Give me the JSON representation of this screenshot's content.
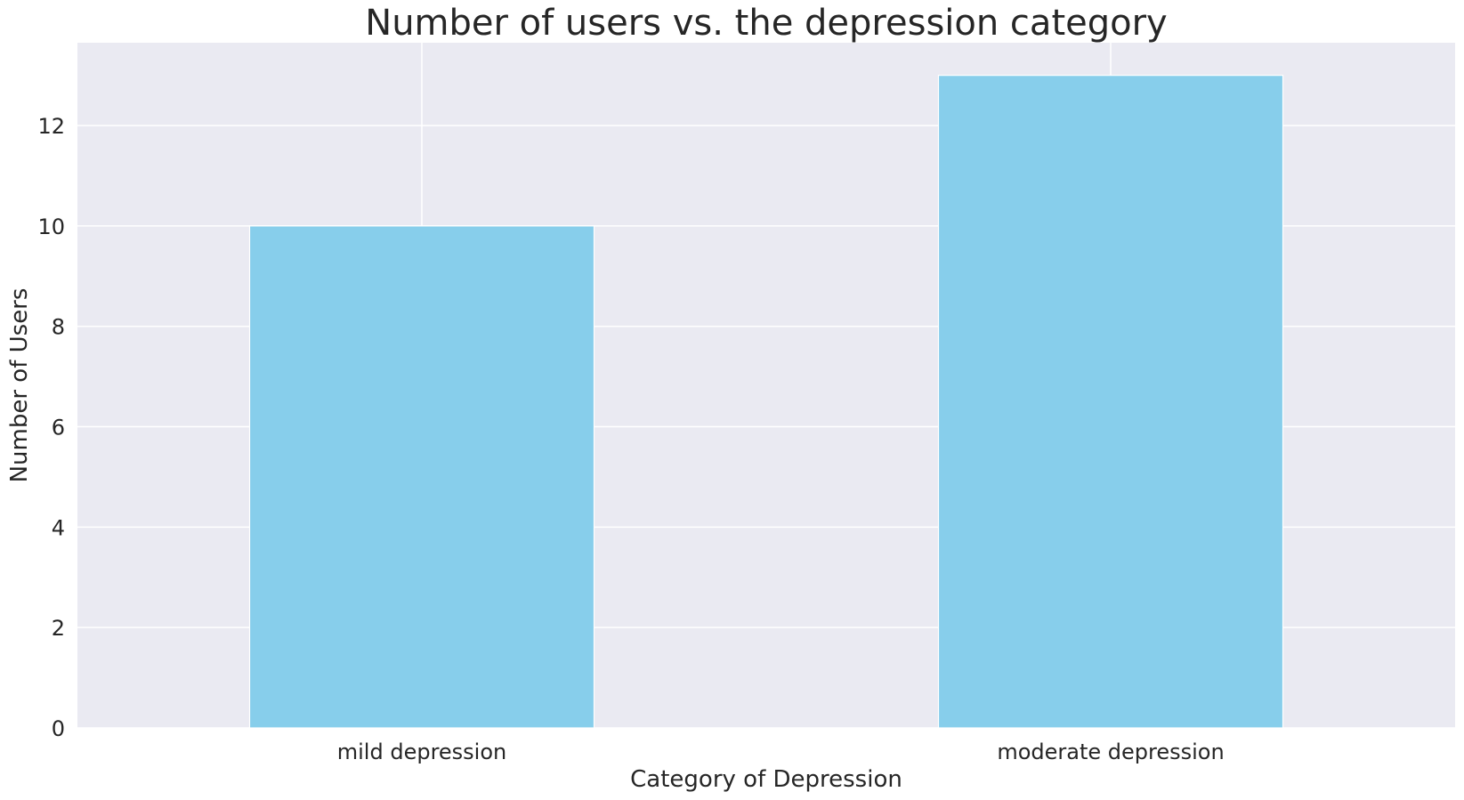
{
  "chart_data": {
    "type": "bar",
    "title": "Number of users vs. the depression category",
    "xlabel": "Category of Depression",
    "ylabel": "Number of Users",
    "categories": [
      "mild depression",
      "moderate depression"
    ],
    "values": [
      10,
      13
    ],
    "ylim": [
      0,
      13.65
    ],
    "yticks": [
      0,
      2,
      4,
      6,
      8,
      10,
      12
    ],
    "grid": true,
    "legend": "none",
    "colors": {
      "bar": "#87CEEB",
      "plot_background": "#EAEAF2",
      "grid": "#FFFFFF",
      "text": "#262626"
    }
  }
}
